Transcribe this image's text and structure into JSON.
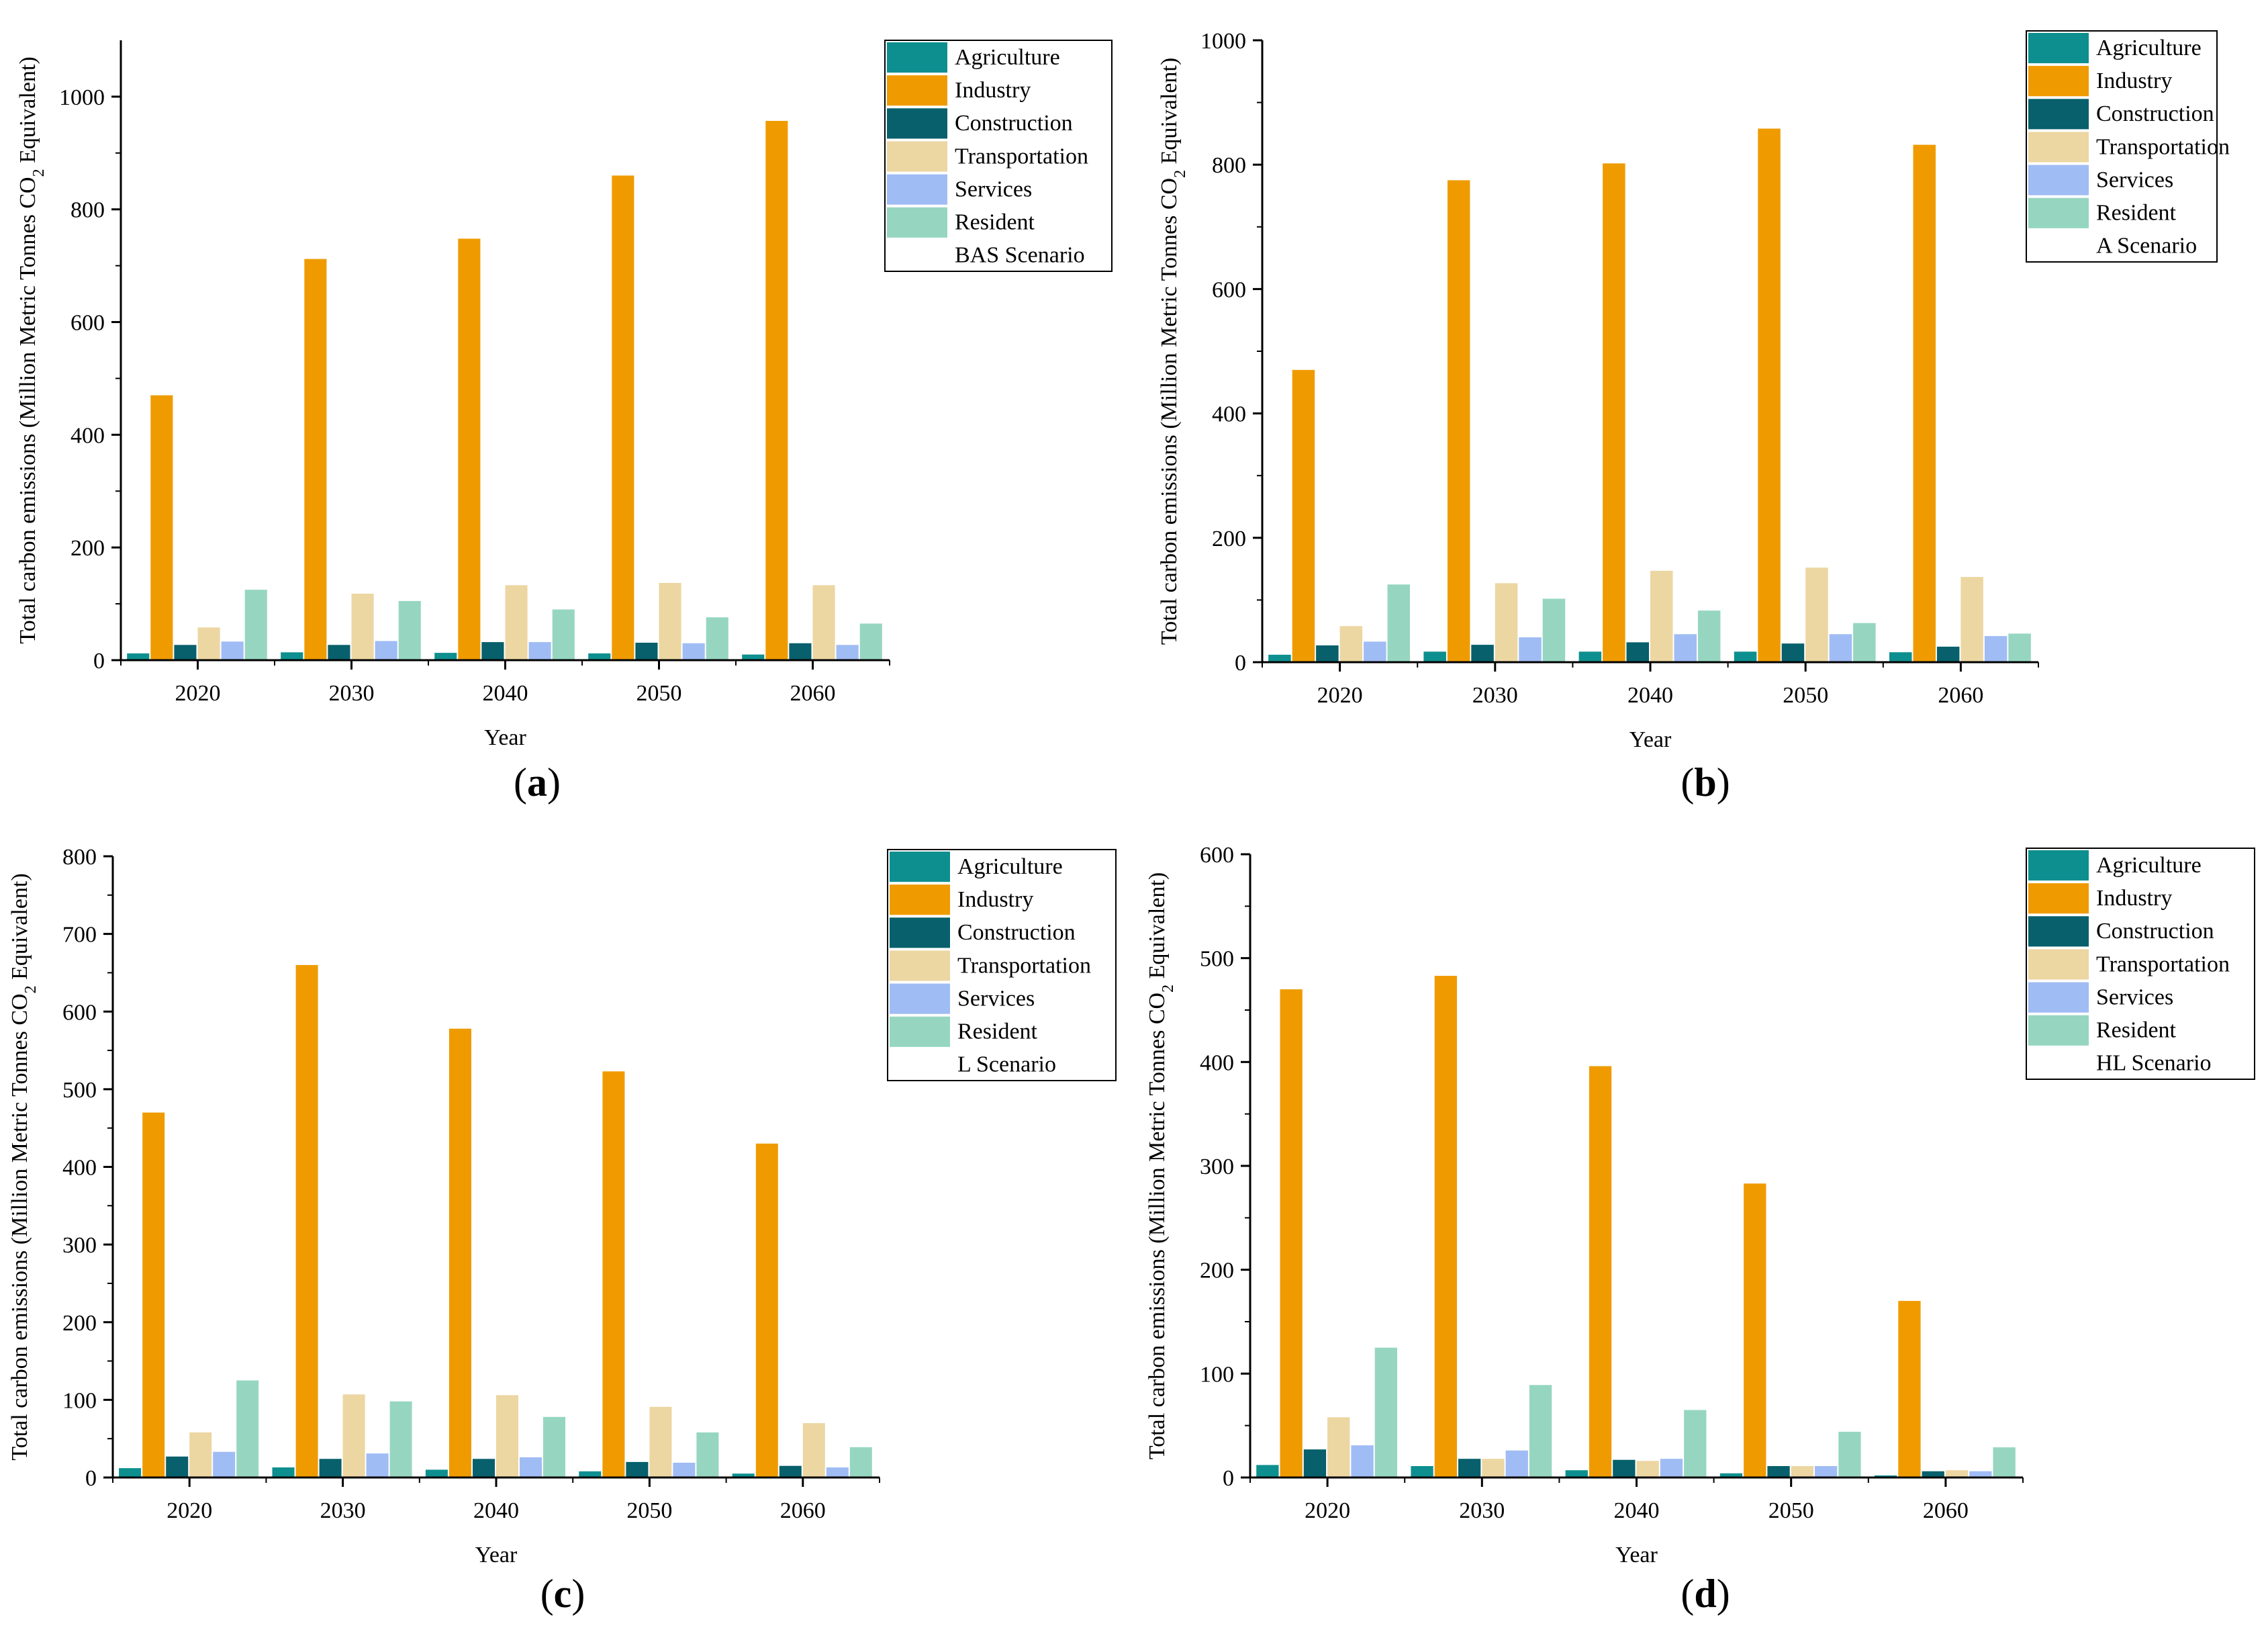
{
  "figure": {
    "legend_entries": [
      "Agriculture",
      "Industry",
      "Construction",
      "Transportation",
      "Services",
      "Resident"
    ],
    "colors": {
      "Agriculture": "#0e8f8f",
      "Industry": "#ef9b00",
      "Construction": "#07606b",
      "Transportation": "#ecd6a2",
      "Services": "#a0bcf4",
      "Resident": "#96d6c1"
    }
  },
  "chart_data": [
    {
      "type": "bar",
      "panel": "a",
      "scenario": "BAS Scenario",
      "title": "",
      "xlabel": "Year",
      "ylabel_main": "Total carbon emissions (Million Metric Tonnes CO",
      "ylabel_sub": "2",
      "ylabel_tail": " Equivalent)",
      "categories": [
        "2020",
        "2030",
        "2040",
        "2050",
        "2060"
      ],
      "ylim": [
        0,
        1100
      ],
      "yticks": [
        0,
        200,
        400,
        600,
        800,
        1000
      ],
      "legend_position": "top-right",
      "series": [
        {
          "name": "Agriculture",
          "values": [
            12,
            14,
            13,
            12,
            10
          ]
        },
        {
          "name": "Industry",
          "values": [
            470,
            712,
            748,
            860,
            957
          ]
        },
        {
          "name": "Construction",
          "values": [
            27,
            27,
            32,
            31,
            30
          ]
        },
        {
          "name": "Transportation",
          "values": [
            58,
            118,
            133,
            137,
            133
          ]
        },
        {
          "name": "Services",
          "values": [
            33,
            34,
            32,
            30,
            27
          ]
        },
        {
          "name": "Resident",
          "values": [
            125,
            105,
            90,
            76,
            65
          ]
        }
      ]
    },
    {
      "type": "bar",
      "panel": "b",
      "scenario": "A Scenario",
      "title": "",
      "xlabel": "Year",
      "ylabel_main": "Total carbon emissions (Million Metric Tonnes CO",
      "ylabel_sub": "2",
      "ylabel_tail": " Equivalent)",
      "categories": [
        "2020",
        "2030",
        "2040",
        "2050",
        "2060"
      ],
      "ylim": [
        0,
        1000
      ],
      "yticks": [
        0,
        200,
        400,
        600,
        800,
        1000
      ],
      "legend_position": "top-right",
      "series": [
        {
          "name": "Agriculture",
          "values": [
            12,
            17,
            17,
            17,
            16
          ]
        },
        {
          "name": "Industry",
          "values": [
            470,
            775,
            802,
            858,
            832
          ]
        },
        {
          "name": "Construction",
          "values": [
            27,
            28,
            32,
            30,
            25
          ]
        },
        {
          "name": "Transportation",
          "values": [
            58,
            127,
            147,
            152,
            137
          ]
        },
        {
          "name": "Services",
          "values": [
            33,
            40,
            45,
            45,
            42
          ]
        },
        {
          "name": "Resident",
          "values": [
            125,
            102,
            83,
            63,
            46
          ]
        }
      ]
    },
    {
      "type": "bar",
      "panel": "c",
      "scenario": "L Scenario",
      "title": "",
      "xlabel": "Year",
      "ylabel_main": "Total carbon emissions (Million Metric Tonnes CO",
      "ylabel_sub": "2",
      "ylabel_tail": " Equivalent)",
      "categories": [
        "2020",
        "2030",
        "2040",
        "2050",
        "2060"
      ],
      "ylim": [
        0,
        800
      ],
      "yticks": [
        0,
        100,
        200,
        300,
        400,
        500,
        600,
        700,
        800
      ],
      "legend_position": "top-right",
      "series": [
        {
          "name": "Agriculture",
          "values": [
            12,
            13,
            10,
            8,
            5
          ]
        },
        {
          "name": "Industry",
          "values": [
            470,
            660,
            578,
            523,
            430
          ]
        },
        {
          "name": "Construction",
          "values": [
            27,
            24,
            24,
            20,
            15
          ]
        },
        {
          "name": "Transportation",
          "values": [
            58,
            107,
            106,
            91,
            70
          ]
        },
        {
          "name": "Services",
          "values": [
            33,
            31,
            26,
            19,
            13
          ]
        },
        {
          "name": "Resident",
          "values": [
            125,
            98,
            78,
            58,
            39
          ]
        }
      ]
    },
    {
      "type": "bar",
      "panel": "d",
      "scenario": "HL Scenario",
      "title": "",
      "xlabel": "Year",
      "ylabel_main": "Total carbon emissions (Million Metric Tonnes CO",
      "ylabel_sub": "2",
      "ylabel_tail": " Equivalent)",
      "categories": [
        "2020",
        "2030",
        "2040",
        "2050",
        "2060"
      ],
      "ylim": [
        0,
        600
      ],
      "yticks": [
        0,
        100,
        200,
        300,
        400,
        500,
        600
      ],
      "legend_position": "top-right",
      "series": [
        {
          "name": "Agriculture",
          "values": [
            12,
            11,
            7,
            4,
            2
          ]
        },
        {
          "name": "Industry",
          "values": [
            470,
            483,
            396,
            283,
            170
          ]
        },
        {
          "name": "Construction",
          "values": [
            27,
            18,
            17,
            11,
            6
          ]
        },
        {
          "name": "Transportation",
          "values": [
            58,
            18,
            16,
            11,
            7
          ]
        },
        {
          "name": "Services",
          "values": [
            31,
            26,
            18,
            11,
            6
          ]
        },
        {
          "name": "Resident",
          "values": [
            125,
            89,
            65,
            44,
            29
          ]
        }
      ]
    }
  ]
}
